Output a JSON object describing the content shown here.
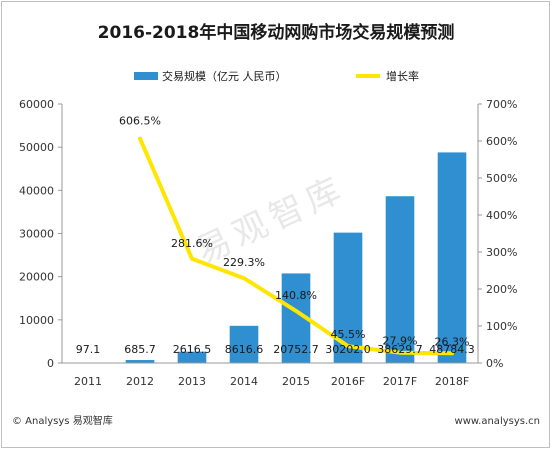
{
  "chart_data": {
    "type": "bar",
    "title": "2016-2018年中国移动网购市场交易规模预测",
    "categories": [
      "2011",
      "2012",
      "2013",
      "2014",
      "2015",
      "2016F",
      "2017F",
      "2018F"
    ],
    "series": [
      {
        "name": "交易规模（亿元 人民币）",
        "type": "bar",
        "axis": "left",
        "color": "#2f8fd0",
        "values": [
          97.1,
          685.7,
          2616.5,
          8616.6,
          20752.7,
          30202.0,
          38629.7,
          48784.3
        ],
        "labels": [
          "97.1",
          "685.7",
          "2616.5",
          "8616.6",
          "20752.7",
          "30202.0",
          "38629.7",
          "48784.3"
        ]
      },
      {
        "name": "增长率",
        "type": "line",
        "axis": "right",
        "color": "#ffe600",
        "values": [
          null,
          606.5,
          281.6,
          229.3,
          140.8,
          45.5,
          27.9,
          26.3
        ],
        "labels": [
          "",
          "606.5%",
          "281.6%",
          "229.3%",
          "140.8%",
          "45.5%",
          "27.9%",
          "26.3%"
        ]
      }
    ],
    "y_left": {
      "min": 0,
      "max": 60000,
      "ticks": [
        0,
        10000,
        20000,
        30000,
        40000,
        50000,
        60000
      ],
      "tick_labels": [
        "0",
        "10000",
        "20000",
        "30000",
        "40000",
        "50000",
        "60000"
      ]
    },
    "y_right": {
      "min": 0,
      "max": 700,
      "ticks": [
        0,
        100,
        200,
        300,
        400,
        500,
        600,
        700
      ],
      "tick_labels": [
        "0%",
        "100%",
        "200%",
        "300%",
        "400%",
        "500%",
        "600%",
        "700%"
      ]
    },
    "grid": false,
    "legend_position": "top"
  },
  "watermark": "易观智库",
  "footer": {
    "source": "© Analysys 易观智库",
    "url": "www.analysys.cn"
  }
}
